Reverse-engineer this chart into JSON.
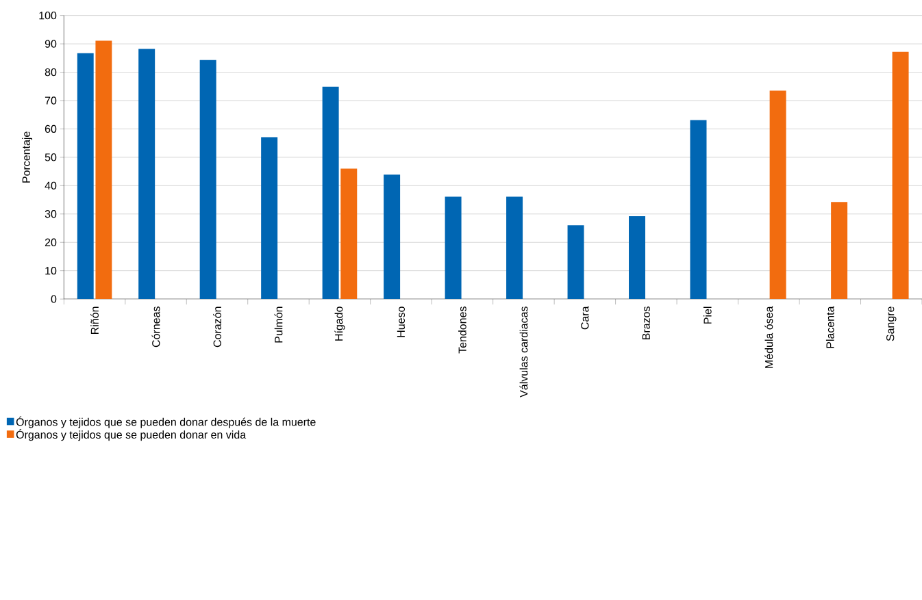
{
  "chart_data": {
    "type": "bar",
    "ylabel": "Porcentaje",
    "categories": [
      "Riñón",
      "Córneas",
      "Corazón",
      "Pulmón",
      "Hígado",
      "Hueso",
      "Tendones",
      "Válvulas cardiacas",
      "Cara",
      "Brazos",
      "Piel",
      "Médula ósea",
      "Placenta",
      "Sangre"
    ],
    "series": [
      {
        "name": "Órganos y tejidos que se pueden donar después de la muerte",
        "color": "#0066b3",
        "values": [
          86.7,
          88.2,
          84.3,
          57.1,
          74.9,
          43.9,
          36.1,
          36.1,
          26.0,
          29.2,
          63.1,
          null,
          null,
          null
        ]
      },
      {
        "name": "Órganos y tejidos que se pueden donar en vida",
        "color": "#f26c0f",
        "values": [
          91.1,
          null,
          null,
          null,
          46.0,
          null,
          null,
          null,
          null,
          null,
          null,
          73.5,
          34.2,
          87.2
        ]
      }
    ],
    "ylim": [
      0,
      100
    ],
    "yticks": [
      0,
      10,
      20,
      30,
      40,
      50,
      60,
      70,
      80,
      90,
      100
    ],
    "grid": "y",
    "legend": "bottom left"
  }
}
